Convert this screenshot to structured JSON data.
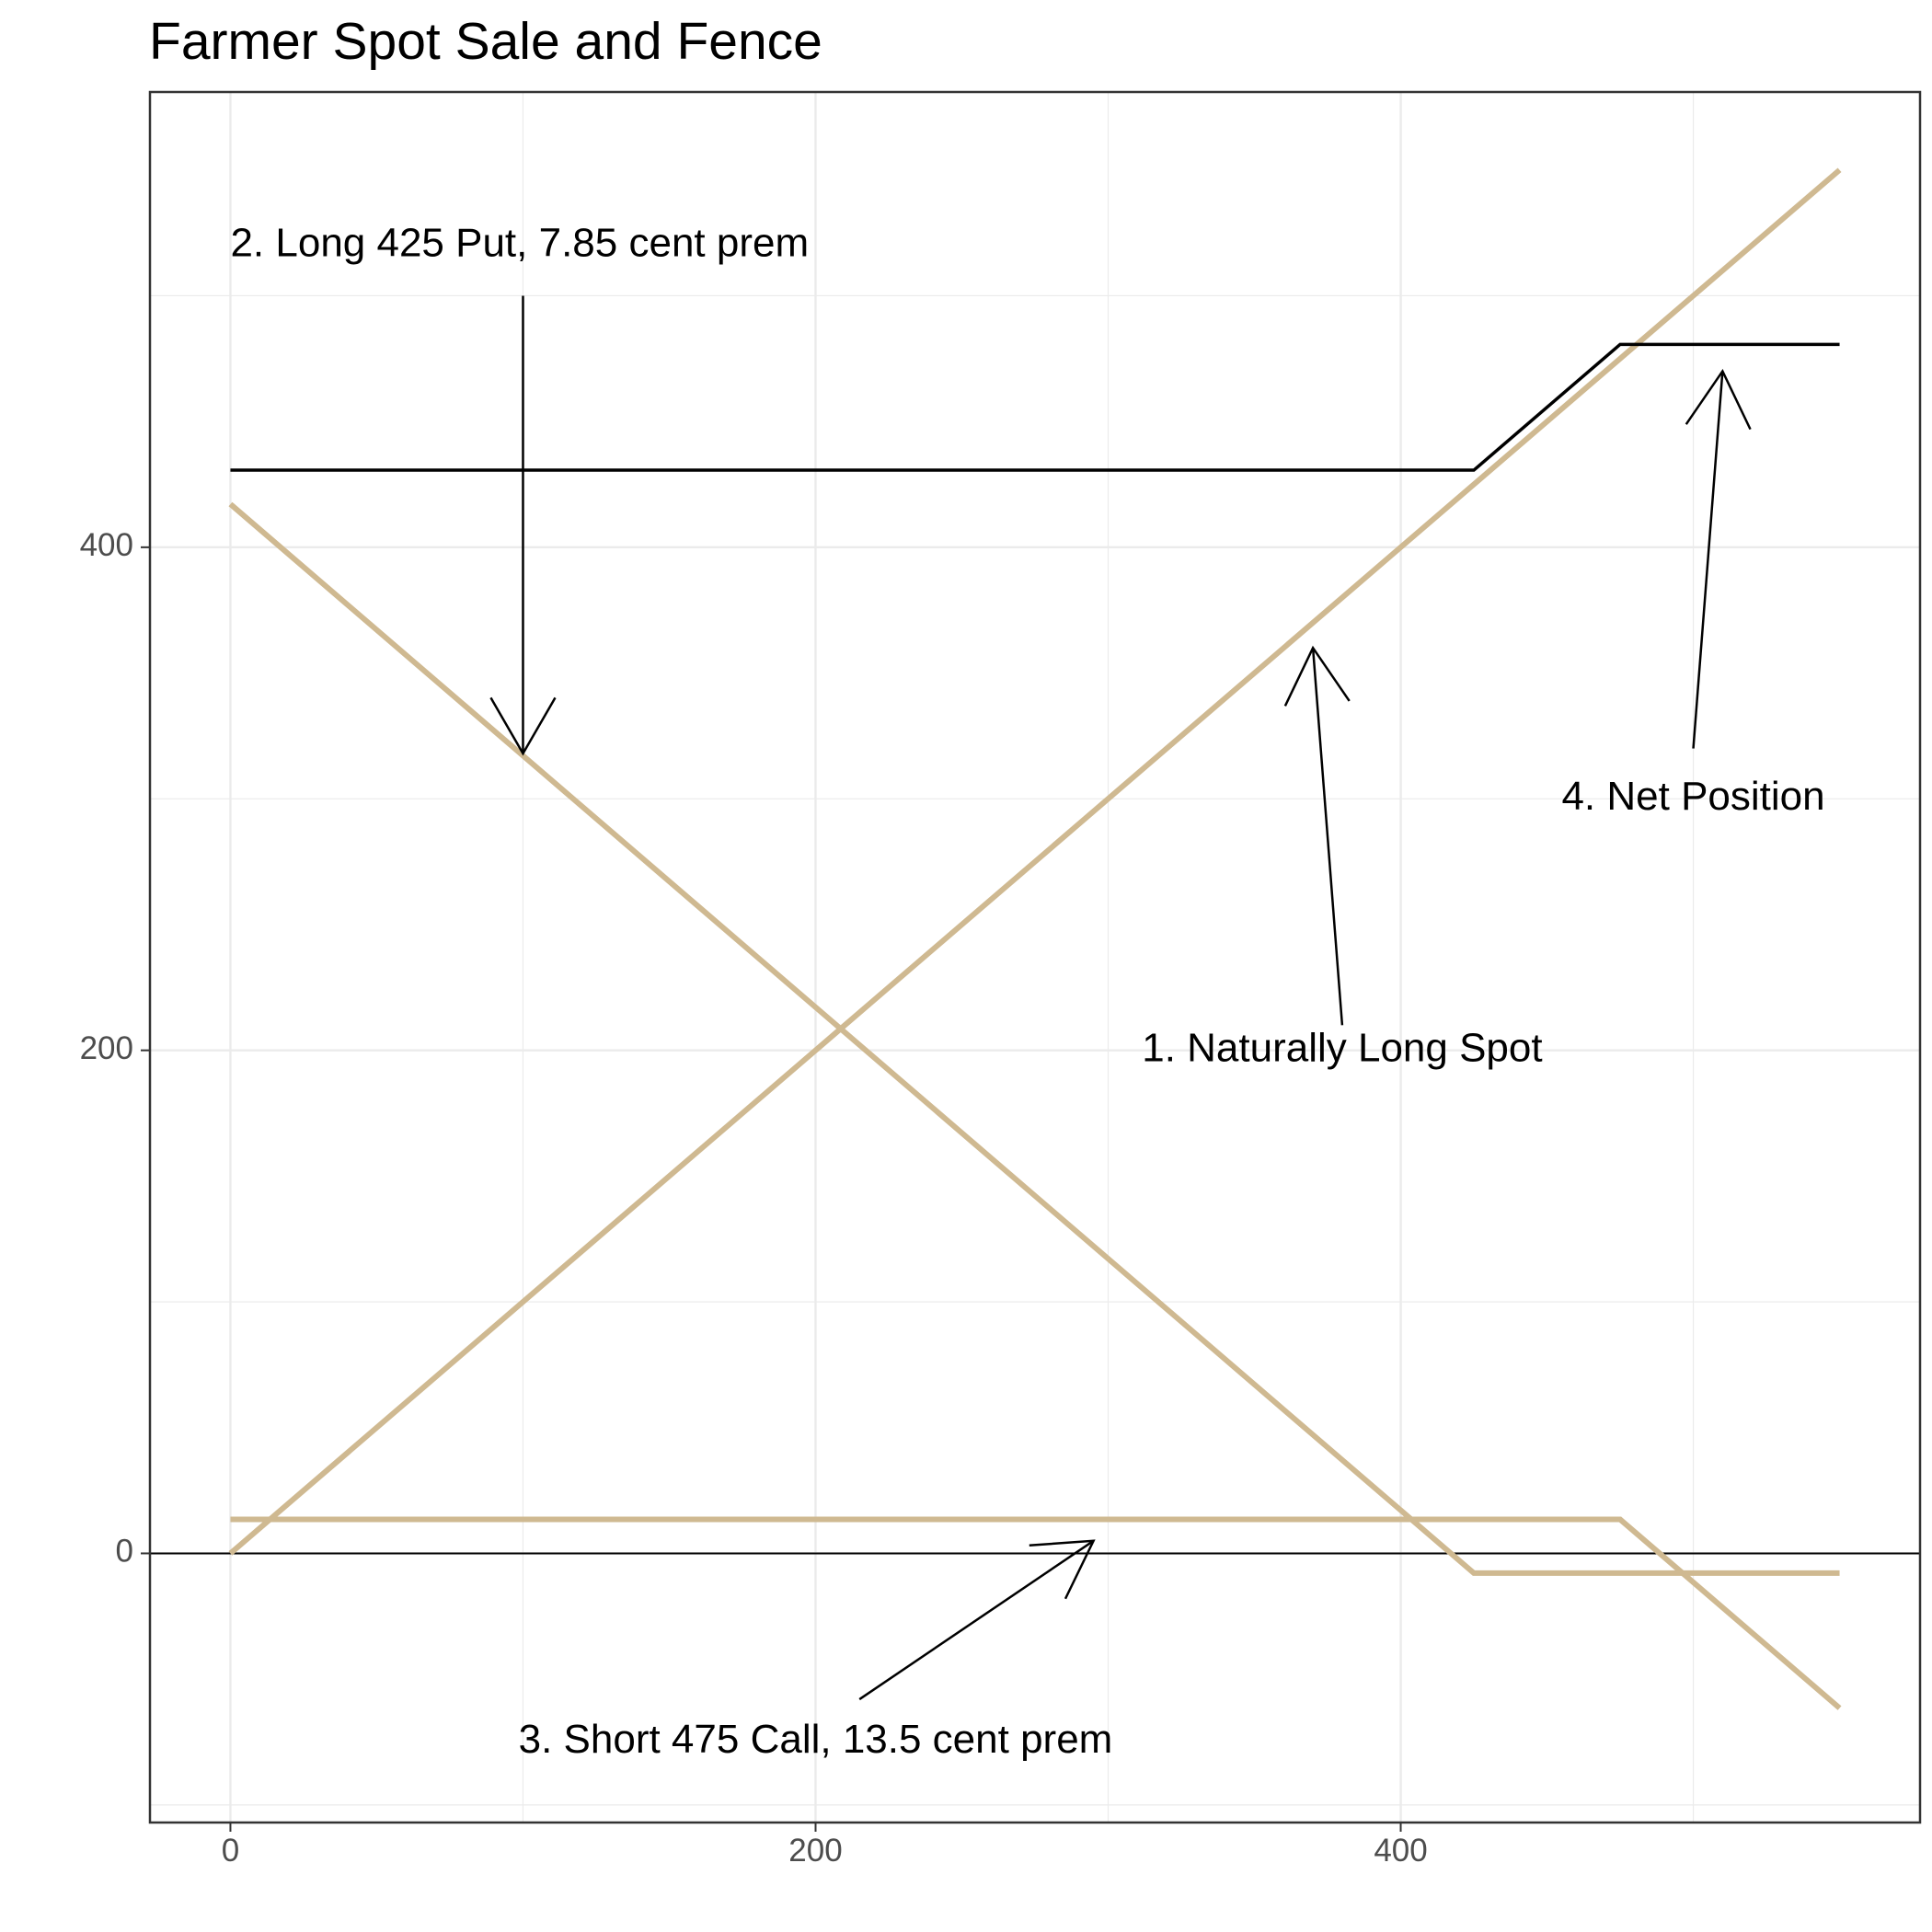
{
  "chart_data": {
    "type": "line",
    "title": "Farmer Spot Sale and Fence",
    "xlabel": "",
    "ylabel": "",
    "xlim": [
      -27.5,
      577.5
    ],
    "ylim": [
      -107,
      581
    ],
    "x_ticks": [
      0,
      200,
      400
    ],
    "y_ticks": [
      0,
      200,
      400
    ],
    "grid": true,
    "zero_line": true,
    "colors": {
      "payoff": "#CFB991",
      "net": "#000000",
      "panel_border": "#333333",
      "grid": "#ebebeb"
    },
    "series": [
      {
        "x": [
          0,
          550
        ],
        "y": [
          0,
          550
        ]
      },
      {
        "x": [
          0,
          425,
          550
        ],
        "y": [
          417.15,
          -7.85,
          -7.85
        ]
      },
      {
        "x": [
          0,
          475,
          550
        ],
        "y": [
          13.5,
          13.5,
          -61.5
        ]
      },
      {
        "x": [
          0,
          425,
          475,
          550
        ],
        "y": [
          430.65,
          430.65,
          480.65,
          480.65
        ]
      }
    ],
    "annotations": [
      {
        "text": "2. Long 425 Put, 7.85 cent prem",
        "x": 0,
        "y": 520,
        "anchor": "start",
        "arrow": {
          "from": [
            100,
            500
          ],
          "to": [
            100,
            318
          ]
        }
      },
      {
        "text": "1. Naturally Long Spot",
        "x": 380,
        "y": 200,
        "anchor": "middle",
        "arrow": {
          "from": [
            380,
            210
          ],
          "to": [
            370,
            360
          ]
        }
      },
      {
        "text": "4. Net Position",
        "x": 500,
        "y": 300,
        "anchor": "middle",
        "arrow": {
          "from": [
            500,
            320
          ],
          "to": [
            510,
            470
          ]
        }
      },
      {
        "text": "3. Short 475 Call, 13.5 cent prem",
        "x": 200,
        "y": -75,
        "anchor": "middle",
        "arrow": {
          "from": [
            215,
            -58
          ],
          "to": [
            295,
            5
          ]
        }
      }
    ]
  }
}
